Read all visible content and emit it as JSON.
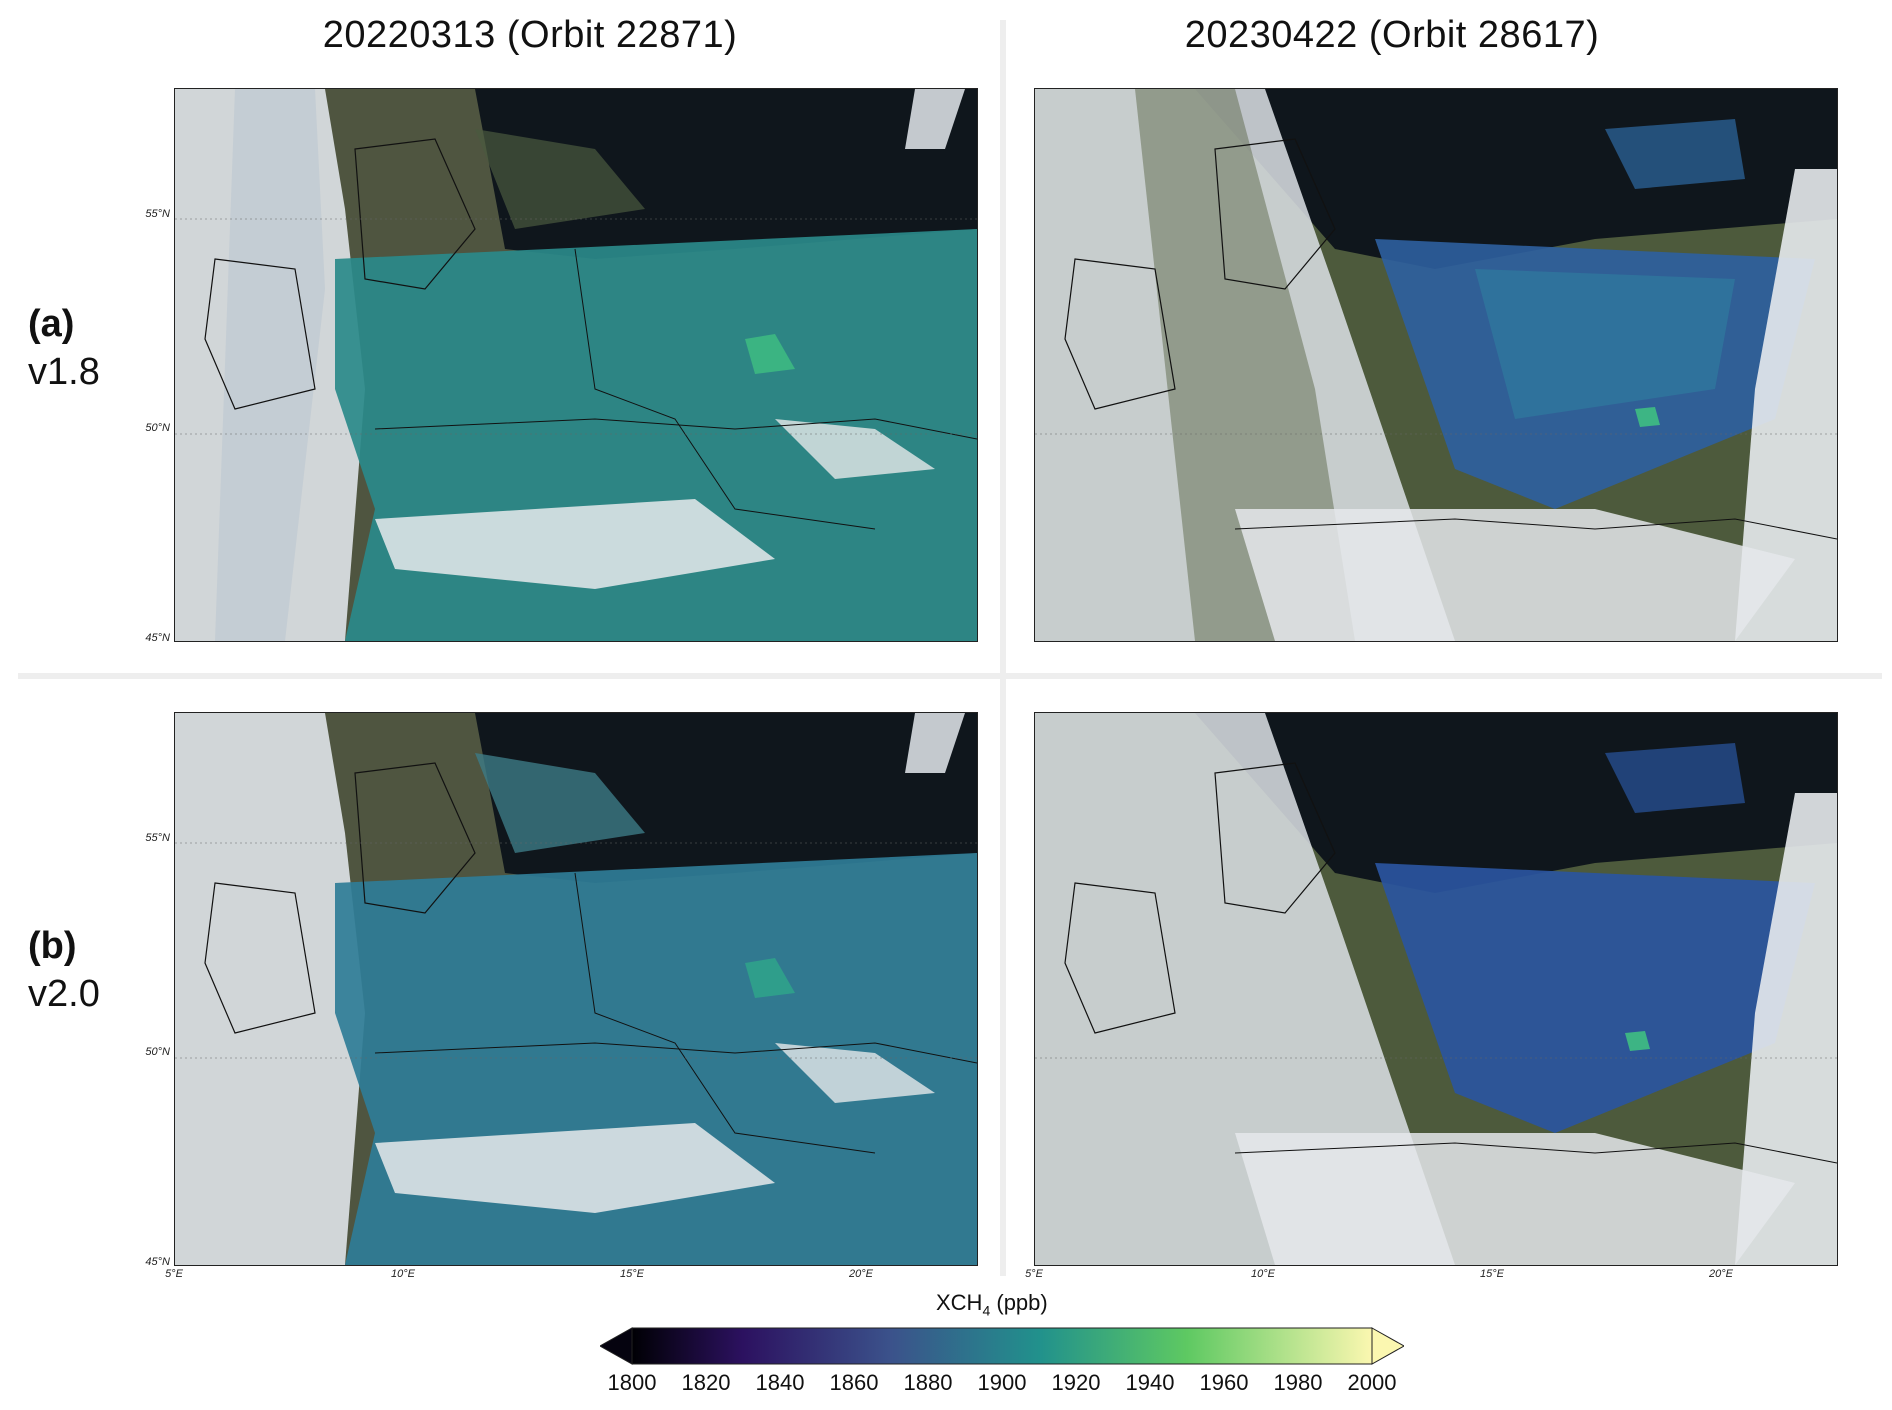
{
  "columns": [
    {
      "title": "20220313  (Orbit 22871)"
    },
    {
      "title": "20230422  (Orbit 28617)"
    }
  ],
  "rows": [
    {
      "tag": "(a)",
      "version": "v1.8"
    },
    {
      "tag": "(b)",
      "version": "v2.0"
    }
  ],
  "axes": {
    "lat_ticks": [
      "55°N",
      "50°N",
      "45°N"
    ],
    "lon_ticks": [
      "5°E",
      "10°E",
      "15°E",
      "20°E"
    ]
  },
  "colorbar": {
    "label_main": "XCH",
    "label_sub": "4",
    "label_unit": " (ppb)",
    "ticks": [
      "1800",
      "1820",
      "1840",
      "1860",
      "1880",
      "1900",
      "1920",
      "1940",
      "1960",
      "1980",
      "2000"
    ],
    "range": [
      1800,
      2000
    ],
    "extend": "both",
    "colormap": "viridis"
  },
  "colors": {
    "sea": "#0e1418",
    "land": "#5a5a44",
    "cloud": "#e4e8ec",
    "xch4_low": "#2d6c9a",
    "xch4_mid": "#2a9d8f",
    "xch4_high": "#4ac27a"
  }
}
